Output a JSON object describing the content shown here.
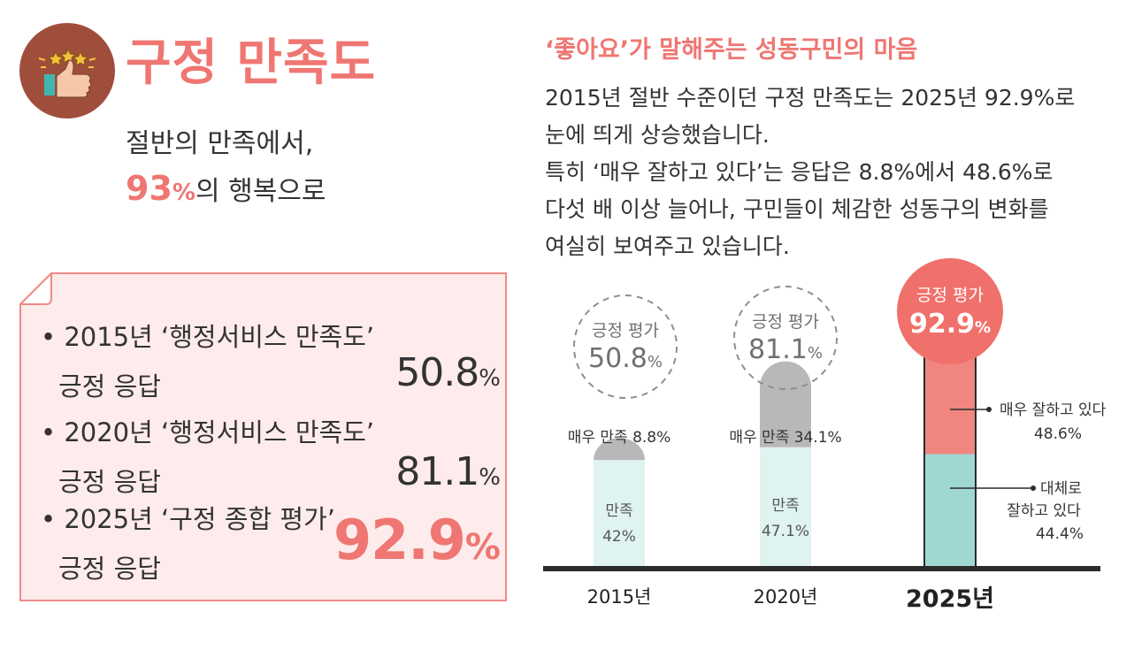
{
  "header": {
    "title": "구정 만족도",
    "subtitle_line1": "절반의 만족에서,",
    "subtitle_num": "93",
    "subtitle_unit": "%",
    "subtitle_rest": "의 행복으로"
  },
  "stats": [
    {
      "bullet": "•",
      "line1": "2015년 ‘행정서비스 만족도’",
      "line2": "긍정 응답",
      "value": "50.8",
      "unit": "%"
    },
    {
      "bullet": "•",
      "line1": "2020년 ‘행정서비스 만족도’",
      "line2": "긍정 응답",
      "value": "81.1",
      "unit": "%"
    },
    {
      "bullet": "•",
      "line1": "2025년 ‘구정 종합 평가’",
      "line2": "긍정 응답",
      "value": "92.9",
      "unit": "%"
    }
  ],
  "right": {
    "quote_title": "‘좋아요’가 말해주는 성동구민의 마음",
    "paragraph_lines": [
      "2015년 절반 수준이던 구정 만족도는 2025년 92.9%로",
      "눈에 띄게 상승했습니다.",
      "특히 ‘매우 잘하고 있다’는 응답은 8.8%에서 48.6%로",
      "다섯 배 이상 늘어나, 구민들이 체감한 성동구의 변화를",
      "여실히 보여주고 있습니다."
    ]
  },
  "colors": {
    "accent": "#ef7672",
    "card_bg": "#fdeceb",
    "teal_light": "#dff3f1",
    "teal": "#9fd8d3",
    "gray": "#b8b7b9",
    "coral_bar": "#f0867f",
    "text": "#333333"
  },
  "chart_data": {
    "type": "bar",
    "title": "",
    "categories": [
      "2015년",
      "2020년",
      "2025년"
    ],
    "ylim": [
      0,
      100
    ],
    "series": [
      {
        "name_by_year": [
          "만족",
          "만족",
          "대체로 잘하고 있다"
        ],
        "values": [
          42,
          47.1,
          44.4
        ],
        "labels": [
          "42%",
          "47.1%",
          "44.4%"
        ]
      },
      {
        "name_by_year": [
          "매우 만족",
          "매우 만족",
          "매우 잘하고 있다"
        ],
        "values": [
          8.8,
          34.1,
          48.6
        ],
        "labels": [
          "8.8%",
          "34.1%",
          "48.6%"
        ]
      }
    ],
    "totals": [
      {
        "label": "긍정 평가",
        "value": "50.8",
        "unit": "%"
      },
      {
        "label": "긍정 평가",
        "value": "81.1",
        "unit": "%"
      },
      {
        "label": "긍정 평가",
        "value": "92.9",
        "unit": "%"
      }
    ],
    "annotations": {
      "top_2015": "매우 만족 8.8%",
      "top_2020": "매우 만족 34.1%",
      "bottom_2015_name": "만족",
      "bottom_2015_val": "42%",
      "bottom_2020_name": "만족",
      "bottom_2020_val": "47.1%",
      "top_2025_name": "매우 잘하고 있다",
      "top_2025_val": "48.6%",
      "bottom_2025_name1": "대체로",
      "bottom_2025_name2": "잘하고 있다",
      "bottom_2025_val": "44.4%"
    }
  }
}
